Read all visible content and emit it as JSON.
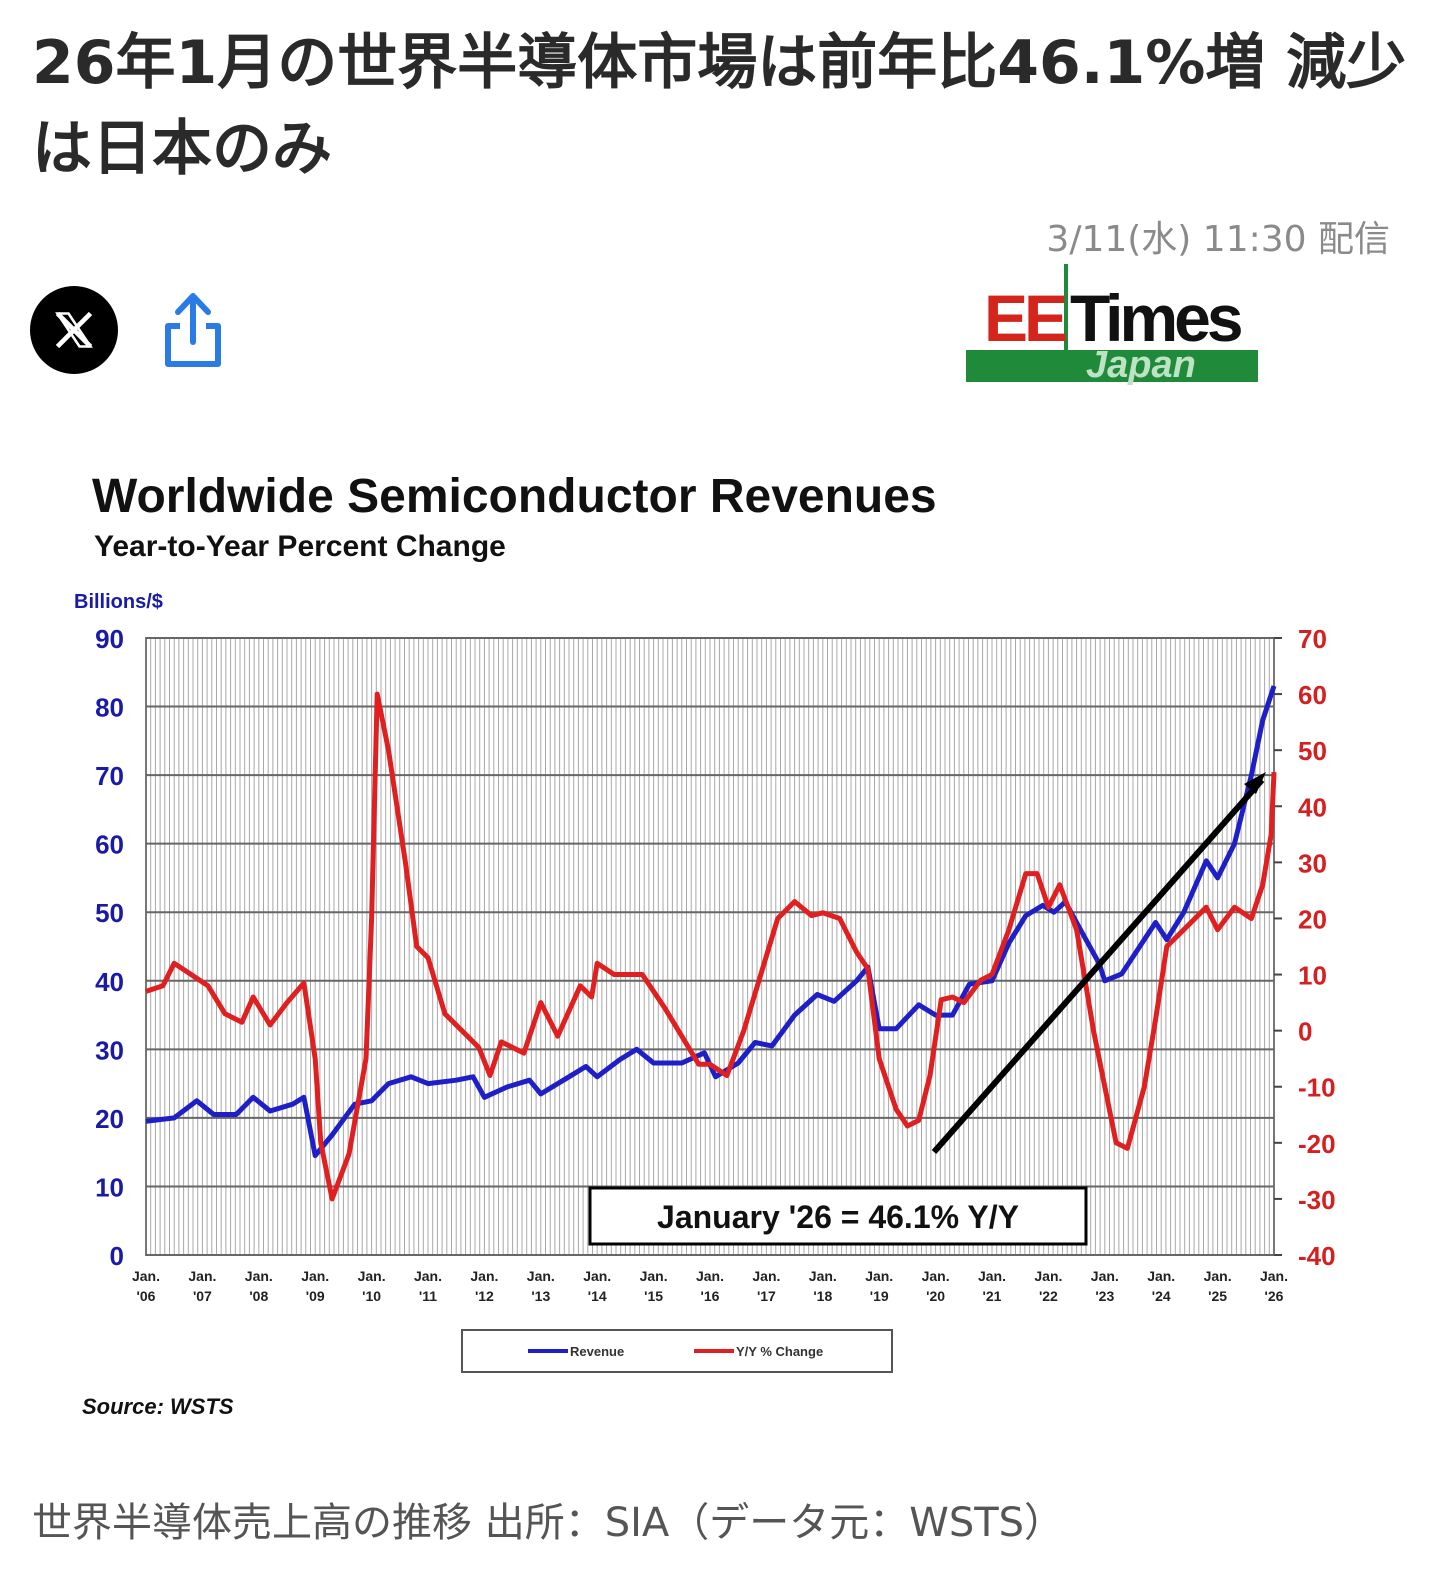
{
  "article": {
    "title": "26年1月の世界半導体市場は前年比46.1%増 減少は日本のみ",
    "date": "3/11(水) 11:30 配信",
    "caption": "世界半導体売上高の推移 出所：SIA（データ元：WSTS）"
  },
  "actions": {
    "x_icon": "x-logo-icon",
    "share_icon": "share-icon"
  },
  "logo": {
    "ee": "EE",
    "times": "Times",
    "japan": "Japan"
  },
  "chart_data": {
    "type": "line",
    "title": "Worldwide Semiconductor Revenues",
    "subtitle": "Year-to-Year Percent Change",
    "ylabel": "Billions/$",
    "ylim": [
      0,
      90
    ],
    "y2lim": [
      -40,
      70
    ],
    "yticks": [
      0,
      10,
      20,
      30,
      40,
      50,
      60,
      70,
      80,
      90
    ],
    "y2ticks": [
      -40,
      -30,
      -20,
      -10,
      0,
      10,
      20,
      30,
      40,
      50,
      60,
      70
    ],
    "xticks": [
      [
        "Jan.",
        "'06"
      ],
      [
        "Jan.",
        "'07"
      ],
      [
        "Jan.",
        "'08"
      ],
      [
        "Jan.",
        "'09"
      ],
      [
        "Jan.",
        "'10"
      ],
      [
        "Jan.",
        "'11"
      ],
      [
        "Jan.",
        "'12"
      ],
      [
        "Jan.",
        "'13"
      ],
      [
        "Jan.",
        "'14"
      ],
      [
        "Jan.",
        "'15"
      ],
      [
        "Jan.",
        "'16"
      ],
      [
        "Jan.",
        "'17"
      ],
      [
        "Jan.",
        "'18"
      ],
      [
        "Jan.",
        "'19"
      ],
      [
        "Jan.",
        "'20"
      ],
      [
        "Jan.",
        "'21"
      ],
      [
        "Jan.",
        "'22"
      ],
      [
        "Jan.",
        "'23"
      ],
      [
        "Jan.",
        "'24"
      ],
      [
        "Jan.",
        "'25"
      ],
      [
        "Jan.",
        "'26"
      ]
    ],
    "annotation": "January '26 = 46.1% Y/Y",
    "source": "Source: WSTS",
    "legend_position": "bottom",
    "series": [
      {
        "name": "Revenue",
        "axis": "left",
        "color": "#1f1fc8",
        "points": [
          [
            2006.0,
            19.5
          ],
          [
            2006.5,
            20.0
          ],
          [
            2006.9,
            22.5
          ],
          [
            2007.2,
            20.5
          ],
          [
            2007.6,
            20.5
          ],
          [
            2007.9,
            23.0
          ],
          [
            2008.2,
            21.0
          ],
          [
            2008.6,
            22.0
          ],
          [
            2008.8,
            23.0
          ],
          [
            2009.0,
            14.5
          ],
          [
            2009.3,
            17.5
          ],
          [
            2009.7,
            22.0
          ],
          [
            2010.0,
            22.5
          ],
          [
            2010.3,
            25.0
          ],
          [
            2010.7,
            26.0
          ],
          [
            2011.0,
            25.0
          ],
          [
            2011.5,
            25.5
          ],
          [
            2011.8,
            26.0
          ],
          [
            2012.0,
            23.0
          ],
          [
            2012.4,
            24.5
          ],
          [
            2012.8,
            25.5
          ],
          [
            2013.0,
            23.5
          ],
          [
            2013.5,
            26.0
          ],
          [
            2013.8,
            27.5
          ],
          [
            2014.0,
            26.0
          ],
          [
            2014.4,
            28.5
          ],
          [
            2014.7,
            30.0
          ],
          [
            2015.0,
            28.0
          ],
          [
            2015.5,
            28.0
          ],
          [
            2015.9,
            29.5
          ],
          [
            2016.1,
            26.0
          ],
          [
            2016.5,
            28.0
          ],
          [
            2016.8,
            31.0
          ],
          [
            2017.1,
            30.5
          ],
          [
            2017.5,
            35.0
          ],
          [
            2017.9,
            38.0
          ],
          [
            2018.2,
            37.0
          ],
          [
            2018.6,
            40.0
          ],
          [
            2018.8,
            42.0
          ],
          [
            2019.0,
            33.0
          ],
          [
            2019.3,
            33.0
          ],
          [
            2019.7,
            36.5
          ],
          [
            2020.0,
            35.0
          ],
          [
            2020.3,
            35.0
          ],
          [
            2020.6,
            39.5
          ],
          [
            2021.0,
            40.0
          ],
          [
            2021.3,
            45.5
          ],
          [
            2021.6,
            49.5
          ],
          [
            2021.9,
            51.0
          ],
          [
            2022.1,
            50.0
          ],
          [
            2022.3,
            51.5
          ],
          [
            2022.6,
            47.0
          ],
          [
            2022.9,
            42.5
          ],
          [
            2023.0,
            40.0
          ],
          [
            2023.3,
            41.0
          ],
          [
            2023.7,
            46.0
          ],
          [
            2023.9,
            48.5
          ],
          [
            2024.1,
            46.0
          ],
          [
            2024.4,
            50.0
          ],
          [
            2024.8,
            57.5
          ],
          [
            2025.0,
            55.0
          ],
          [
            2025.3,
            60.0
          ],
          [
            2025.6,
            70.0
          ],
          [
            2025.8,
            78.0
          ],
          [
            2026.0,
            83.0
          ]
        ]
      },
      {
        "name": "Y/Y % Change",
        "axis": "right",
        "color": "#e02020",
        "points": [
          [
            2006.0,
            7.0
          ],
          [
            2006.3,
            8.0
          ],
          [
            2006.5,
            12.0
          ],
          [
            2006.8,
            10.0
          ],
          [
            2007.1,
            8.0
          ],
          [
            2007.4,
            3.0
          ],
          [
            2007.7,
            1.5
          ],
          [
            2007.9,
            6.0
          ],
          [
            2008.2,
            1.0
          ],
          [
            2008.5,
            5.0
          ],
          [
            2008.8,
            8.5
          ],
          [
            2009.0,
            -5.0
          ],
          [
            2009.1,
            -20.0
          ],
          [
            2009.3,
            -30.0
          ],
          [
            2009.6,
            -22.0
          ],
          [
            2009.9,
            -5.0
          ],
          [
            2010.0,
            20.0
          ],
          [
            2010.1,
            60.0
          ],
          [
            2010.3,
            50.0
          ],
          [
            2010.6,
            30.0
          ],
          [
            2010.8,
            15.0
          ],
          [
            2011.0,
            13.0
          ],
          [
            2011.3,
            3.0
          ],
          [
            2011.7,
            -1.0
          ],
          [
            2011.9,
            -3.0
          ],
          [
            2012.1,
            -8.0
          ],
          [
            2012.3,
            -2.0
          ],
          [
            2012.7,
            -4.0
          ],
          [
            2013.0,
            5.0
          ],
          [
            2013.3,
            -1.0
          ],
          [
            2013.7,
            8.0
          ],
          [
            2013.9,
            6.0
          ],
          [
            2014.0,
            12.0
          ],
          [
            2014.3,
            10.0
          ],
          [
            2014.8,
            10.0
          ],
          [
            2015.2,
            4.0
          ],
          [
            2015.5,
            -1.0
          ],
          [
            2015.8,
            -6.0
          ],
          [
            2016.0,
            -6.0
          ],
          [
            2016.3,
            -8.0
          ],
          [
            2016.6,
            0.0
          ],
          [
            2016.9,
            10.0
          ],
          [
            2017.2,
            20.0
          ],
          [
            2017.5,
            23.0
          ],
          [
            2017.8,
            20.5
          ],
          [
            2018.0,
            21.0
          ],
          [
            2018.3,
            20.0
          ],
          [
            2018.6,
            14.0
          ],
          [
            2018.8,
            11.0
          ],
          [
            2019.0,
            -5.0
          ],
          [
            2019.3,
            -14.0
          ],
          [
            2019.5,
            -17.0
          ],
          [
            2019.7,
            -16.0
          ],
          [
            2019.9,
            -8.0
          ],
          [
            2020.1,
            5.5
          ],
          [
            2020.3,
            6.0
          ],
          [
            2020.5,
            5.0
          ],
          [
            2020.8,
            9.0
          ],
          [
            2021.0,
            10.0
          ],
          [
            2021.3,
            18.0
          ],
          [
            2021.6,
            28.0
          ],
          [
            2021.8,
            28.0
          ],
          [
            2022.0,
            22.0
          ],
          [
            2022.2,
            26.0
          ],
          [
            2022.5,
            18.0
          ],
          [
            2022.8,
            0.0
          ],
          [
            2023.0,
            -10.0
          ],
          [
            2023.2,
            -20.0
          ],
          [
            2023.4,
            -21.0
          ],
          [
            2023.7,
            -10.0
          ],
          [
            2023.9,
            2.0
          ],
          [
            2024.1,
            15.0
          ],
          [
            2024.3,
            17.0
          ],
          [
            2024.6,
            20.0
          ],
          [
            2024.8,
            22.0
          ],
          [
            2025.0,
            18.0
          ],
          [
            2025.3,
            22.0
          ],
          [
            2025.6,
            20.0
          ],
          [
            2025.8,
            26.0
          ],
          [
            2025.95,
            35.0
          ],
          [
            2026.0,
            46.1
          ]
        ]
      }
    ]
  }
}
